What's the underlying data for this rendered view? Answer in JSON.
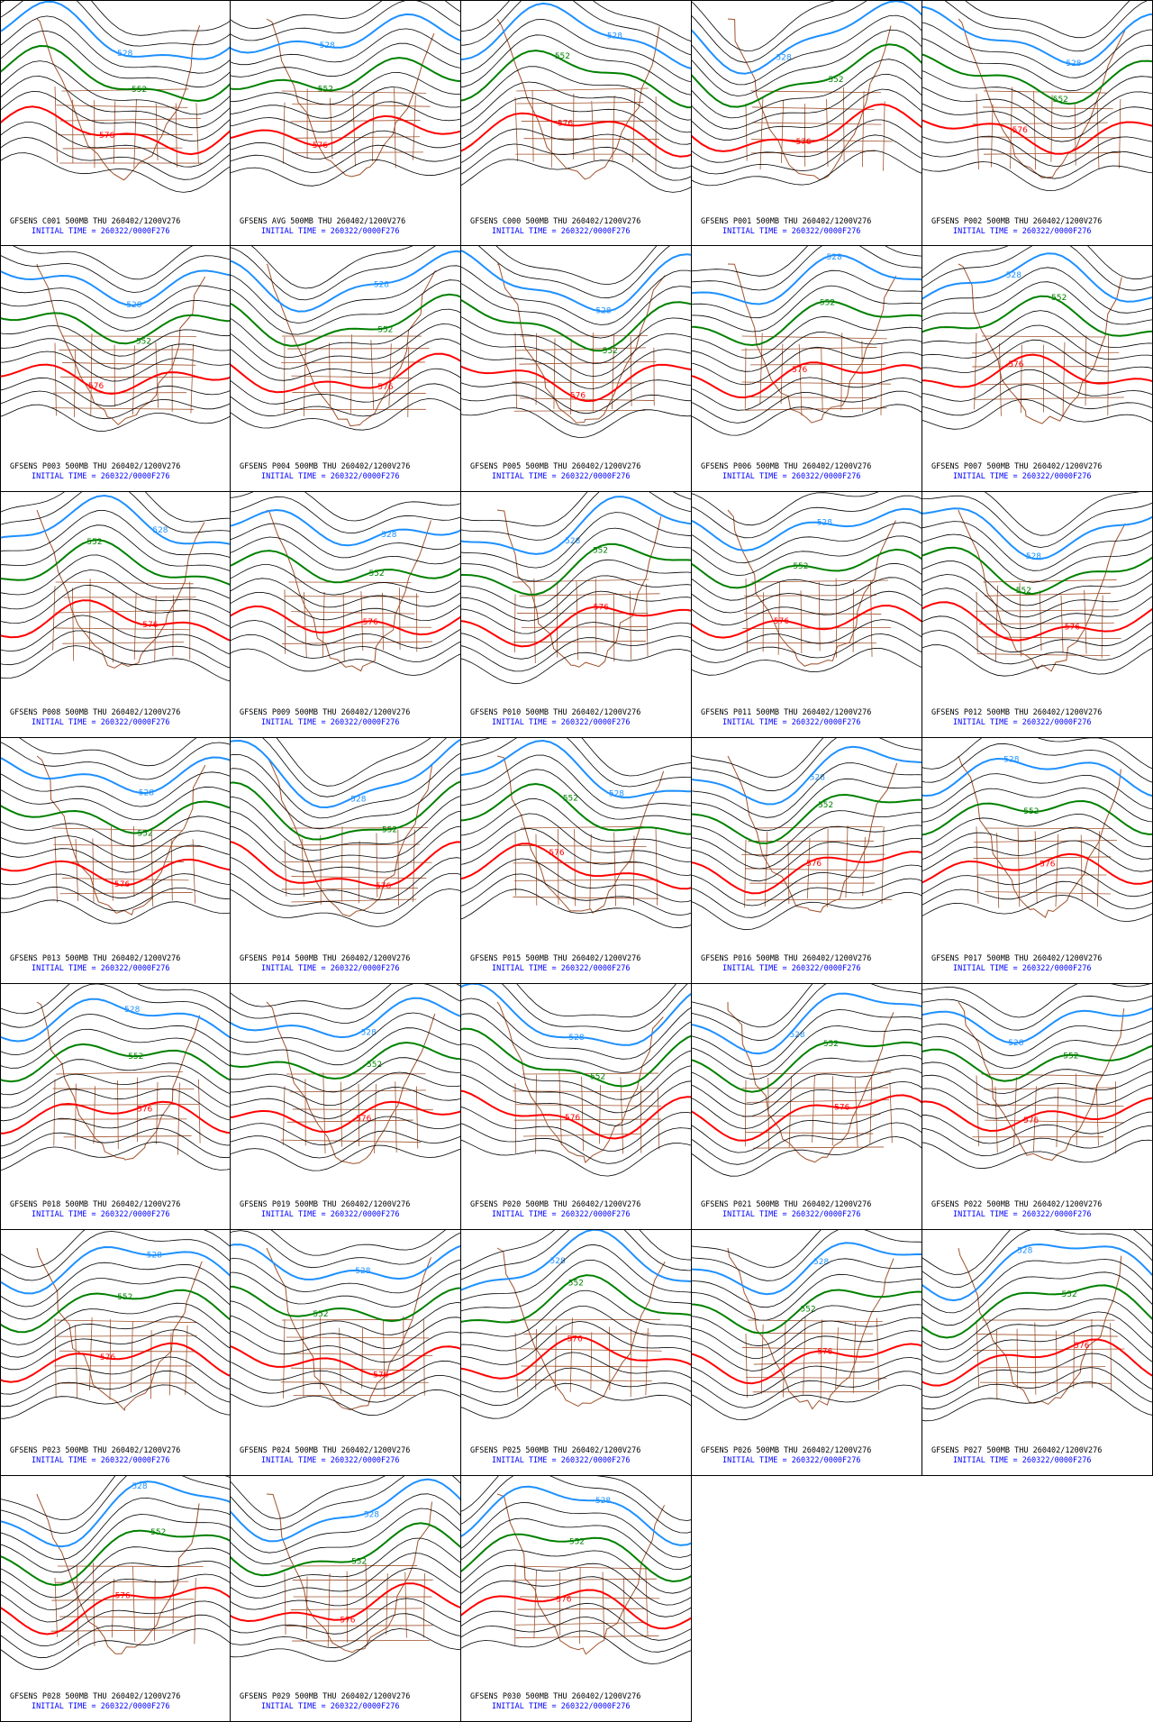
{
  "panels": [
    {
      "title": "GFSENS C001 500MB THU 260402/1200V276",
      "init": "INITIAL TIME = 260322/0000F276",
      "contours": [
        "528",
        "552",
        "576"
      ]
    },
    {
      "title": "GFSENS AVG 500MB THU 260402/1200V276",
      "init": "INITIAL TIME = 260322/0000F276",
      "contours": [
        "528",
        "552",
        "576"
      ]
    },
    {
      "title": "GFSENS C000 500MB THU 260402/1200V276",
      "init": "INITIAL TIME = 260322/0000F276",
      "contours": [
        "528",
        "552",
        "576"
      ]
    },
    {
      "title": "GFSENS P001 500MB THU 260402/1200V276",
      "init": "INITIAL TIME = 260322/0000F276",
      "contours": [
        "528",
        "552",
        "576"
      ]
    },
    {
      "title": "GFSENS P002 500MB THU 260402/1200V276",
      "init": "INITIAL TIME = 260322/0000F276",
      "contours": [
        "528",
        "552",
        "576"
      ]
    },
    {
      "title": "GFSENS P003 500MB THU 260402/1200V276",
      "init": "INITIAL TIME = 260322/0000F276",
      "contours": [
        "528",
        "552",
        "576"
      ]
    },
    {
      "title": "GFSENS P004 500MB THU 260402/1200V276",
      "init": "INITIAL TIME = 260322/0000F276",
      "contours": [
        "528",
        "552",
        "576"
      ]
    },
    {
      "title": "GFSENS P005 500MB THU 260402/1200V276",
      "init": "INITIAL TIME = 260322/0000F276",
      "contours": [
        "528",
        "552",
        "576"
      ]
    },
    {
      "title": "GFSENS P006 500MB THU 260402/1200V276",
      "init": "INITIAL TIME = 260322/0000F276",
      "contours": [
        "528",
        "552",
        "576"
      ]
    },
    {
      "title": "GFSENS P007 500MB THU 260402/1200V276",
      "init": "INITIAL TIME = 260322/0000F276",
      "contours": [
        "528",
        "552",
        "576"
      ]
    },
    {
      "title": "GFSENS P008 500MB THU 260402/1200V276",
      "init": "INITIAL TIME = 260322/0000F276",
      "contours": [
        "528",
        "552",
        "576"
      ]
    },
    {
      "title": "GFSENS P009 500MB THU 260402/1200V276",
      "init": "INITIAL TIME = 260322/0000F276",
      "contours": [
        "528",
        "552",
        "576"
      ]
    },
    {
      "title": "GFSENS P010 500MB THU 260402/1200V276",
      "init": "INITIAL TIME = 260322/0000F276",
      "contours": [
        "528",
        "552",
        "576"
      ]
    },
    {
      "title": "GFSENS P011 500MB THU 260402/1200V276",
      "init": "INITIAL TIME = 260322/0000F276",
      "contours": [
        "528",
        "552",
        "576"
      ]
    },
    {
      "title": "GFSENS P012 500MB THU 260402/1200V276",
      "init": "INITIAL TIME = 260322/0000F276",
      "contours": [
        "528",
        "552",
        "576"
      ]
    },
    {
      "title": "GFSENS P013 500MB THU 260402/1200V276",
      "init": "INITIAL TIME = 260322/0000F276",
      "contours": [
        "528",
        "552",
        "576"
      ]
    },
    {
      "title": "GFSENS P014 500MB THU 260402/1200V276",
      "init": "INITIAL TIME = 260322/0000F276",
      "contours": [
        "528",
        "552",
        "576"
      ]
    },
    {
      "title": "GFSENS P015 500MB THU 260402/1200V276",
      "init": "INITIAL TIME = 260322/0000F276",
      "contours": [
        "528",
        "552",
        "576"
      ]
    },
    {
      "title": "GFSENS P016 500MB THU 260402/1200V276",
      "init": "INITIAL TIME = 260322/0000F276",
      "contours": [
        "528",
        "552",
        "576"
      ]
    },
    {
      "title": "GFSENS P017 500MB THU 260402/1200V276",
      "init": "INITIAL TIME = 260322/0000F276",
      "contours": [
        "528",
        "552",
        "576"
      ]
    },
    {
      "title": "GFSENS P018 500MB THU 260402/1200V276",
      "init": "INITIAL TIME = 260322/0000F276",
      "contours": [
        "528",
        "552",
        "576"
      ]
    },
    {
      "title": "GFSENS P019 500MB THU 260402/1200V276",
      "init": "INITIAL TIME = 260322/0000F276",
      "contours": [
        "528",
        "552",
        "576"
      ]
    },
    {
      "title": "GFSENS P020 500MB THU 260402/1200V276",
      "init": "INITIAL TIME = 260322/0000F276",
      "contours": [
        "528",
        "552",
        "576"
      ]
    },
    {
      "title": "GFSENS P021 500MB THU 260402/1200V276",
      "init": "INITIAL TIME = 260322/0000F276",
      "contours": [
        "528",
        "552",
        "576"
      ]
    },
    {
      "title": "GFSENS P022 500MB THU 260402/1200V276",
      "init": "INITIAL TIME = 260322/0000F276",
      "contours": [
        "528",
        "552",
        "576"
      ]
    },
    {
      "title": "GFSENS P023 500MB THU 260402/1200V276",
      "init": "INITIAL TIME = 260322/0000F276",
      "contours": [
        "528",
        "552",
        "576"
      ]
    },
    {
      "title": "GFSENS P024 500MB THU 260402/1200V276",
      "init": "INITIAL TIME = 260322/0000F276",
      "contours": [
        "528",
        "552",
        "576"
      ]
    },
    {
      "title": "GFSENS P025 500MB THU 260402/1200V276",
      "init": "INITIAL TIME = 260322/0000F276",
      "contours": [
        "528",
        "552",
        "576"
      ]
    },
    {
      "title": "GFSENS P026 500MB THU 260402/1200V276",
      "init": "INITIAL TIME = 260322/0000F276",
      "contours": [
        "528",
        "552",
        "576"
      ]
    },
    {
      "title": "GFSENS P027 500MB THU 260402/1200V276",
      "init": "INITIAL TIME = 260322/0000F276",
      "contours": [
        "528",
        "552",
        "576"
      ]
    },
    {
      "title": "GFSENS P028 500MB THU 260402/1200V276",
      "init": "INITIAL TIME = 260322/0000F276",
      "contours": [
        "528",
        "552",
        "576"
      ]
    },
    {
      "title": "GFSENS P029 500MB THU 260402/1200V276",
      "init": "INITIAL TIME = 260322/0000F276",
      "contours": [
        "528",
        "552",
        "576"
      ]
    },
    {
      "title": "GFSENS P030 500MB THU 260402/1200V276",
      "init": "INITIAL TIME = 260322/0000F276",
      "contours": [
        "528",
        "552",
        "576"
      ]
    }
  ]
}
